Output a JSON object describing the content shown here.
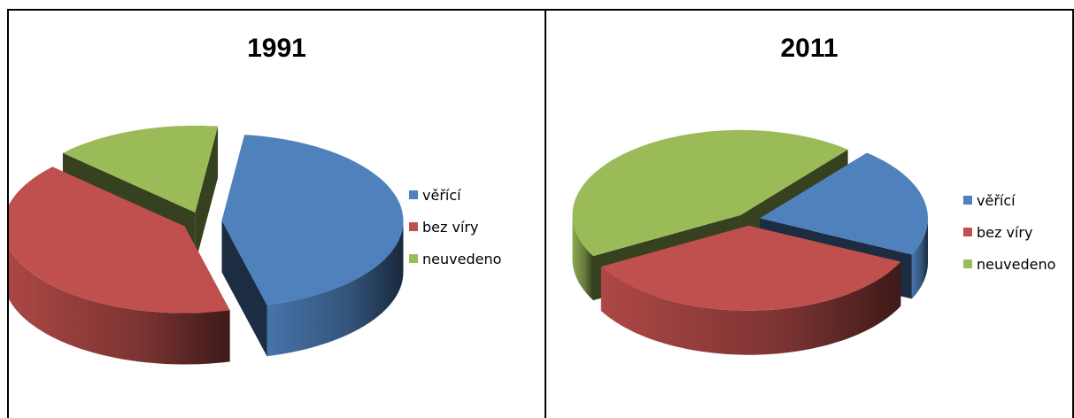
{
  "chart_data": [
    {
      "type": "pie",
      "title": "1991",
      "categories": [
        "věřící",
        "bez víry",
        "neuvedeno"
      ],
      "values": [
        44,
        41,
        15
      ],
      "colors": [
        "#4F81BD",
        "#C0504D",
        "#9BBB59"
      ],
      "exploded": true,
      "style": "3d",
      "legend": "right"
    },
    {
      "type": "pie",
      "title": "2011",
      "categories": [
        "věřící",
        "bez víry",
        "neuvedeno"
      ],
      "values": [
        21,
        35,
        44
      ],
      "colors": [
        "#4F81BD",
        "#C0504D",
        "#9BBB59"
      ],
      "exploded": true,
      "style": "3d",
      "legend": "right"
    }
  ]
}
